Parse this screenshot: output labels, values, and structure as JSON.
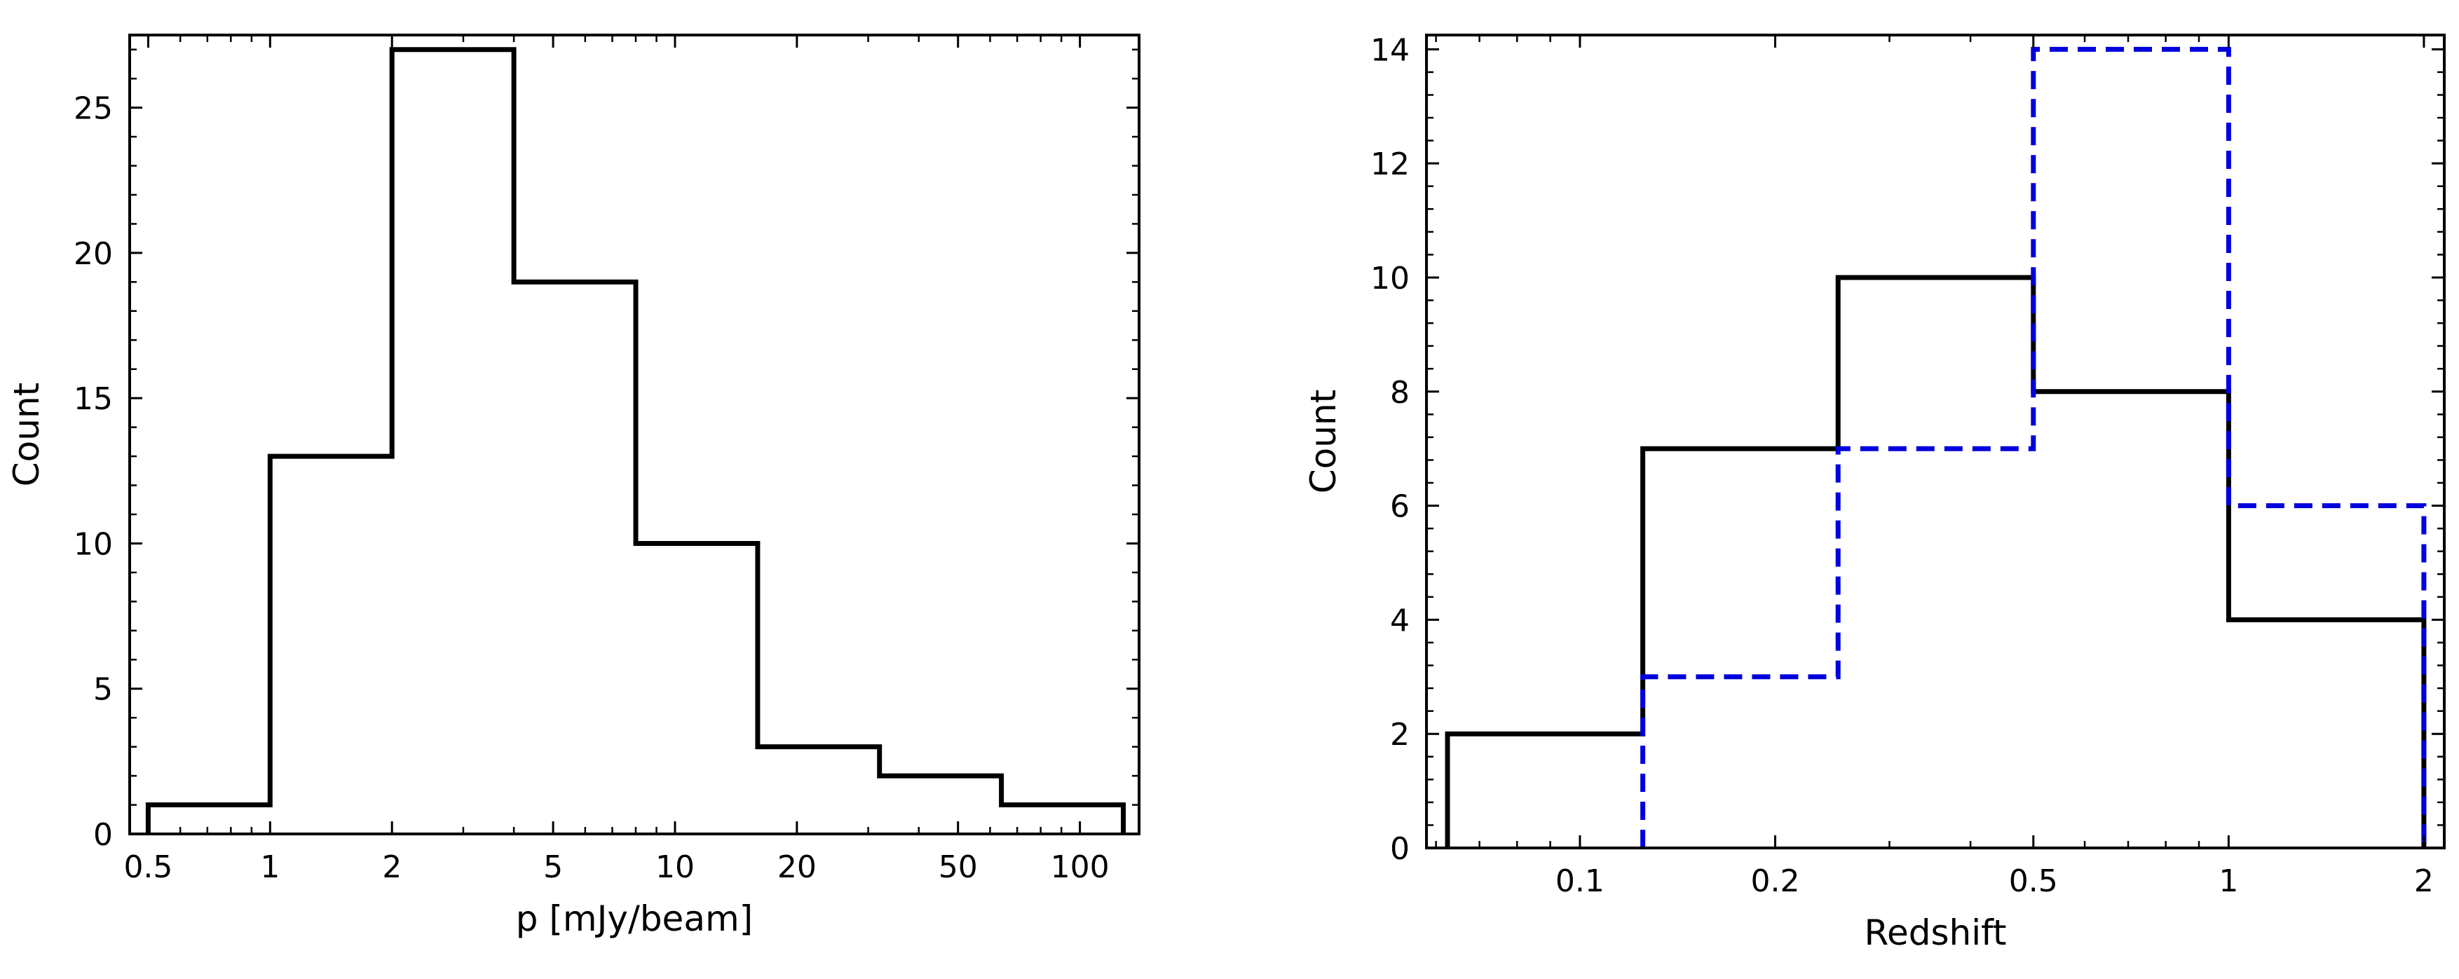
{
  "chart_data": [
    {
      "type": "histogram",
      "xlabel": "p [mJy/beam]",
      "ylabel": "Count",
      "xscale": "log",
      "xlim": [
        0.45,
        140
      ],
      "ylim": [
        0,
        27.5
      ],
      "xticks": [
        {
          "value": 0.5,
          "label": "0.5"
        },
        {
          "value": 1,
          "label": "1"
        },
        {
          "value": 2,
          "label": "2"
        },
        {
          "value": 5,
          "label": "5"
        },
        {
          "value": 10,
          "label": "10"
        },
        {
          "value": 20,
          "label": "20"
        },
        {
          "value": 50,
          "label": "50"
        },
        {
          "value": 100,
          "label": "100"
        }
      ],
      "yticks": [
        {
          "value": 0,
          "label": "0"
        },
        {
          "value": 5,
          "label": "5"
        },
        {
          "value": 10,
          "label": "10"
        },
        {
          "value": 15,
          "label": "15"
        },
        {
          "value": 20,
          "label": "20"
        },
        {
          "value": 25,
          "label": "25"
        }
      ],
      "series": [
        {
          "color": "#000000",
          "style": "solid",
          "bin_edges": [
            0.5,
            1,
            2,
            4,
            8,
            16,
            32,
            64,
            128
          ],
          "counts": [
            1,
            13,
            27,
            19,
            10,
            3,
            2,
            1
          ]
        }
      ]
    },
    {
      "type": "histogram",
      "xlabel": "Redshift",
      "ylabel": "Count",
      "xscale": "log",
      "xlim": [
        0.058,
        2.15
      ],
      "ylim": [
        0,
        14.25
      ],
      "xticks": [
        {
          "value": 0.1,
          "label": "0.1"
        },
        {
          "value": 0.2,
          "label": "0.2"
        },
        {
          "value": 0.5,
          "label": "0.5"
        },
        {
          "value": 1,
          "label": "1"
        },
        {
          "value": 2,
          "label": "2"
        }
      ],
      "yticks": [
        {
          "value": 0,
          "label": "0"
        },
        {
          "value": 2,
          "label": "2"
        },
        {
          "value": 4,
          "label": "4"
        },
        {
          "value": 6,
          "label": "6"
        },
        {
          "value": 8,
          "label": "8"
        },
        {
          "value": 10,
          "label": "10"
        },
        {
          "value": 12,
          "label": "12"
        },
        {
          "value": 14,
          "label": "14"
        }
      ],
      "series": [
        {
          "color": "#000000",
          "style": "solid",
          "bin_edges": [
            0.0625,
            0.125,
            0.25,
            0.5,
            1,
            2
          ],
          "counts": [
            2,
            7,
            10,
            8,
            4
          ]
        },
        {
          "color": "#0000dd",
          "style": "dashed",
          "bin_edges": [
            0.125,
            0.25,
            0.5,
            1,
            2
          ],
          "counts": [
            3,
            7,
            14,
            6
          ]
        }
      ]
    }
  ]
}
